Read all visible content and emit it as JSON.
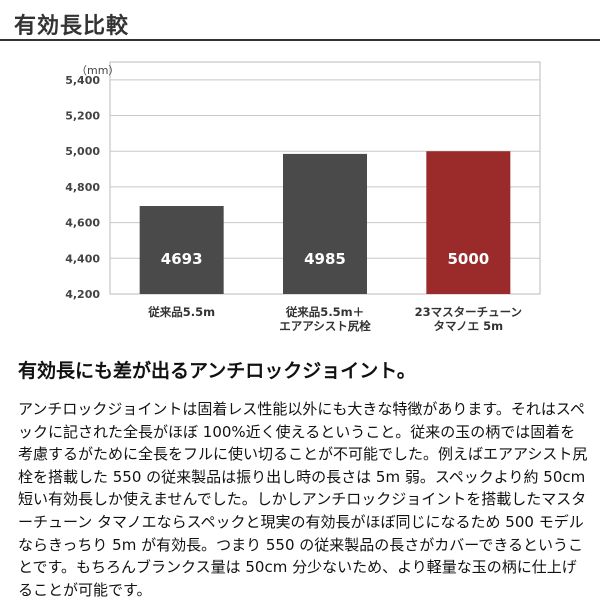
{
  "header": {
    "title": "有効長比較"
  },
  "chart_data": {
    "type": "bar",
    "unit_label": "（mm）",
    "categories": [
      [
        "従来品5.5m"
      ],
      [
        "従来品5.5m＋",
        "エアアシスト尻栓"
      ],
      [
        "23マスターチューン",
        "タマノエ 5m"
      ]
    ],
    "values": [
      4693,
      4985,
      5000
    ],
    "value_labels": [
      "4693",
      "4985",
      "5000"
    ],
    "ylim": [
      4200,
      5500
    ],
    "yticks": [
      4200,
      4400,
      4600,
      4800,
      5000,
      5200,
      5400
    ],
    "ytick_labels": [
      "4,200",
      "4,400",
      "4,600",
      "4,800",
      "5,000",
      "5,200",
      "5,400"
    ],
    "grid": true,
    "colors": [
      "#4a4a4a",
      "#4a4a4a",
      "#9b2b2b"
    ]
  },
  "article": {
    "subheading": "有効長にも差が出るアンチロックジョイント。",
    "body": "アンチロックジョイントは固着レス性能以外にも大きな特徴があります。それはスペックに記された全長がほぼ 100%近く使えるということ。従来の玉の柄では固着を考慮するがために全長をフルに使い切ることが不可能でした。例えばエアアシスト尻栓を搭載した 550 の従来製品は振り出し時の長さは 5m 弱。スペックより約 50cm 短い有効長しか使えませんでした。しかしアンチロックジョイントを搭載したマスターチューン タマノエならスペックと現実の有効長がほぼ同じになるため 500 モデルならきっちり 5m が有効長。つまり 550 の従来製品の長さがカバーできるということです。もちろんブランクス量は 50cm 分少ないため、より軽量な玉の柄に仕上げることが可能です。"
  }
}
